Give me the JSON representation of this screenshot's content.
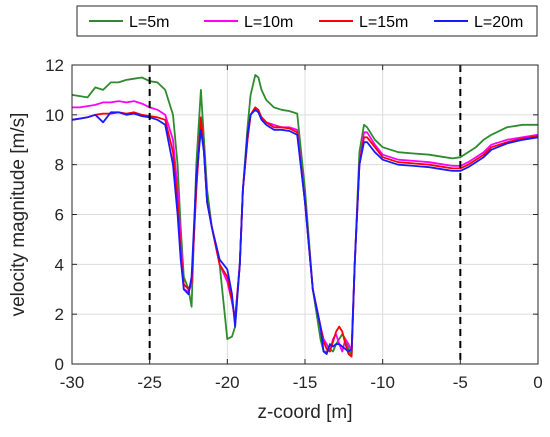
{
  "chart_data": {
    "type": "line",
    "xlabel": "z-coord [m]",
    "ylabel": "velocity magnitude [m/s]",
    "xlim": [
      -30,
      0
    ],
    "ylim": [
      0,
      12
    ],
    "xticks": [
      -30,
      -25,
      -20,
      -15,
      -10,
      -5,
      0
    ],
    "yticks": [
      0,
      2,
      4,
      6,
      8,
      10,
      12
    ],
    "xtick_labels": [
      "-30",
      "-25",
      "-20",
      "-15",
      "-10",
      "-5",
      "0"
    ],
    "ytick_labels": [
      "0",
      "2",
      "4",
      "6",
      "8",
      "10",
      "12"
    ],
    "grid": true,
    "legend_position": "top, outside, horizontal",
    "vlines": [
      -25,
      -5
    ],
    "vline_style": "dashed",
    "vline_color": "#000000",
    "series": [
      {
        "name": "L=5m",
        "color": "#2e8b2e",
        "x": [
          -30,
          -29.5,
          -29,
          -28.5,
          -28,
          -27.5,
          -27,
          -26.5,
          -26,
          -25.5,
          -25,
          -24.5,
          -24,
          -23.5,
          -23.2,
          -23,
          -22.8,
          -22.5,
          -22.3,
          -22,
          -21.7,
          -21.5,
          -21.3,
          -21,
          -20.5,
          -20,
          -19.7,
          -19.5,
          -19.2,
          -19,
          -18.7,
          -18.5,
          -18.2,
          -18,
          -17.8,
          -17.5,
          -17,
          -16.5,
          -16,
          -15.5,
          -15,
          -14.5,
          -14,
          -13.8,
          -13.6,
          -13.4,
          -13.2,
          -13,
          -12.8,
          -12.6,
          -12.4,
          -12.2,
          -12,
          -11.8,
          -11.5,
          -11.2,
          -11,
          -10.5,
          -10,
          -9.5,
          -9,
          -8,
          -7,
          -6,
          -5.5,
          -5,
          -4.5,
          -4,
          -3.5,
          -3,
          -2,
          -1,
          0
        ],
        "y": [
          10.8,
          10.75,
          10.7,
          11.1,
          11.0,
          11.3,
          11.3,
          11.4,
          11.45,
          11.5,
          11.35,
          11.3,
          11.0,
          10.0,
          8.0,
          5.5,
          3.5,
          3.0,
          2.3,
          8.0,
          11.0,
          9.0,
          7.0,
          5.5,
          4.0,
          1.0,
          1.1,
          1.5,
          4.0,
          7.0,
          9.5,
          10.8,
          11.6,
          11.5,
          11.0,
          10.6,
          10.3,
          10.2,
          10.15,
          10.05,
          7.0,
          3.0,
          1.0,
          0.5,
          0.5,
          0.6,
          0.5,
          0.8,
          1.0,
          1.2,
          1.0,
          0.6,
          0.3,
          4.0,
          8.5,
          9.6,
          9.5,
          9.0,
          8.7,
          8.6,
          8.5,
          8.45,
          8.4,
          8.3,
          8.25,
          8.3,
          8.5,
          8.7,
          9.0,
          9.2,
          9.5,
          9.6,
          9.6
        ]
      },
      {
        "name": "L=10m",
        "color": "#ff00ff",
        "x": [
          -30,
          -29.5,
          -29,
          -28.5,
          -28,
          -27.5,
          -27,
          -26.5,
          -26,
          -25.5,
          -25,
          -24.5,
          -24,
          -23.5,
          -23.2,
          -23,
          -22.8,
          -22.5,
          -22.3,
          -22,
          -21.7,
          -21.5,
          -21.3,
          -21,
          -20.5,
          -20,
          -19.7,
          -19.5,
          -19.2,
          -19,
          -18.7,
          -18.5,
          -18.2,
          -18,
          -17.8,
          -17.5,
          -17,
          -16.5,
          -16,
          -15.5,
          -15,
          -14.5,
          -14,
          -13.8,
          -13.6,
          -13.4,
          -13.2,
          -13,
          -12.8,
          -12.6,
          -12.4,
          -12.2,
          -12,
          -11.8,
          -11.5,
          -11.2,
          -11,
          -10.5,
          -10,
          -9.5,
          -9,
          -8,
          -7,
          -6,
          -5.5,
          -5,
          -4.5,
          -4,
          -3.5,
          -3,
          -2,
          -1,
          0
        ],
        "y": [
          10.3,
          10.3,
          10.35,
          10.4,
          10.5,
          10.5,
          10.55,
          10.5,
          10.55,
          10.45,
          10.3,
          10.2,
          10.0,
          9.0,
          7.0,
          5.0,
          3.0,
          2.9,
          3.2,
          7.0,
          9.8,
          8.5,
          6.5,
          5.5,
          4.0,
          3.3,
          2.5,
          1.8,
          4.0,
          7.0,
          9.0,
          10.0,
          10.3,
          10.1,
          9.9,
          9.7,
          9.6,
          9.5,
          9.5,
          9.4,
          6.5,
          3.0,
          1.5,
          1.0,
          0.8,
          0.5,
          1.0,
          1.2,
          0.8,
          0.5,
          1.0,
          0.8,
          0.5,
          4.0,
          8.0,
          9.3,
          9.3,
          8.8,
          8.4,
          8.3,
          8.2,
          8.15,
          8.1,
          8.0,
          7.95,
          7.95,
          8.1,
          8.3,
          8.5,
          8.8,
          9.0,
          9.1,
          9.2
        ]
      },
      {
        "name": "L=15m",
        "color": "#ff0000",
        "x": [
          -30,
          -29.5,
          -29,
          -28.5,
          -28,
          -27.5,
          -27,
          -26.5,
          -26,
          -25.5,
          -25,
          -24.5,
          -24,
          -23.5,
          -23.2,
          -23,
          -22.8,
          -22.5,
          -22.3,
          -22,
          -21.7,
          -21.5,
          -21.3,
          -21,
          -20.5,
          -20,
          -19.7,
          -19.5,
          -19.2,
          -19,
          -18.7,
          -18.5,
          -18.2,
          -18,
          -17.8,
          -17.5,
          -17,
          -16.5,
          -16,
          -15.5,
          -15,
          -14.5,
          -14,
          -13.8,
          -13.6,
          -13.4,
          -13.2,
          -13,
          -12.8,
          -12.6,
          -12.4,
          -12.2,
          -12,
          -11.8,
          -11.5,
          -11.2,
          -11,
          -10.5,
          -10,
          -9.5,
          -9,
          -8,
          -7,
          -6,
          -5.5,
          -5,
          -4.5,
          -4,
          -3.5,
          -3,
          -2,
          -1,
          0
        ],
        "y": [
          9.8,
          9.85,
          9.9,
          10.0,
          10.05,
          10.05,
          10.1,
          10.05,
          10.1,
          10.0,
          9.95,
          9.9,
          9.8,
          8.5,
          6.5,
          4.5,
          3.2,
          3.0,
          3.3,
          7.0,
          9.9,
          8.5,
          6.5,
          5.5,
          4.0,
          3.5,
          2.5,
          1.8,
          4.0,
          7.0,
          9.0,
          10.0,
          10.3,
          10.2,
          9.9,
          9.7,
          9.5,
          9.5,
          9.45,
          9.3,
          6.5,
          3.0,
          1.5,
          0.9,
          0.6,
          0.5,
          0.9,
          1.3,
          1.5,
          1.3,
          0.8,
          0.4,
          0.3,
          4.0,
          8.0,
          9.1,
          9.1,
          8.7,
          8.3,
          8.2,
          8.1,
          8.05,
          8.0,
          7.9,
          7.85,
          7.85,
          8.0,
          8.2,
          8.4,
          8.7,
          8.9,
          9.05,
          9.15
        ]
      },
      {
        "name": "L=20m",
        "color": "#1a1aff",
        "x": [
          -30,
          -29.5,
          -29,
          -28.5,
          -28,
          -27.5,
          -27,
          -26.5,
          -26,
          -25.5,
          -25,
          -24.5,
          -24,
          -23.5,
          -23.2,
          -23,
          -22.8,
          -22.5,
          -22.3,
          -22,
          -21.7,
          -21.5,
          -21.3,
          -21,
          -20.5,
          -20,
          -19.7,
          -19.5,
          -19.2,
          -19,
          -18.7,
          -18.5,
          -18.2,
          -18,
          -17.8,
          -17.5,
          -17,
          -16.5,
          -16,
          -15.5,
          -15,
          -14.5,
          -14,
          -13.8,
          -13.6,
          -13.4,
          -13.2,
          -13,
          -12.8,
          -12.6,
          -12.4,
          -12.2,
          -12,
          -11.8,
          -11.5,
          -11.2,
          -11,
          -10.5,
          -10,
          -9.5,
          -9,
          -8,
          -7,
          -6,
          -5.5,
          -5,
          -4.5,
          -4,
          -3.5,
          -3,
          -2,
          -1,
          0
        ],
        "y": [
          9.8,
          9.85,
          9.9,
          10.0,
          9.7,
          10.1,
          10.1,
          10.0,
          10.05,
          9.95,
          9.9,
          9.8,
          9.6,
          8.0,
          6.0,
          4.2,
          3.0,
          2.8,
          3.5,
          7.5,
          9.4,
          8.5,
          6.5,
          5.5,
          4.2,
          3.8,
          2.8,
          1.5,
          4.0,
          7.0,
          9.2,
          10.0,
          10.2,
          10.1,
          9.8,
          9.6,
          9.4,
          9.4,
          9.35,
          9.2,
          6.5,
          3.0,
          1.5,
          0.5,
          0.4,
          0.8,
          0.7,
          0.8,
          0.8,
          0.7,
          0.6,
          0.5,
          0.6,
          4.0,
          8.0,
          8.9,
          8.9,
          8.5,
          8.2,
          8.1,
          8.0,
          7.95,
          7.9,
          7.8,
          7.75,
          7.75,
          7.9,
          8.1,
          8.3,
          8.6,
          8.85,
          9.0,
          9.1
        ]
      }
    ]
  }
}
